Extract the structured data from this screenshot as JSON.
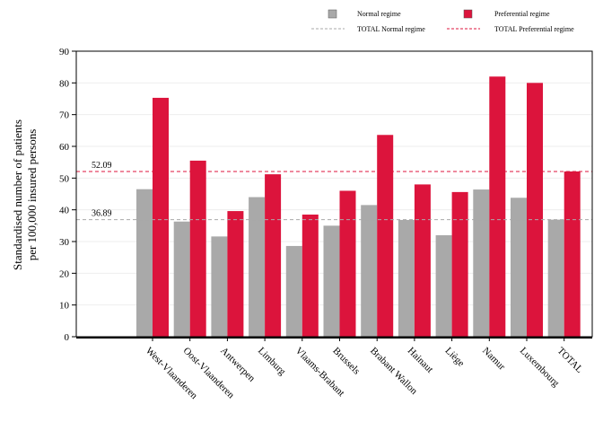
{
  "chart_data": {
    "type": "bar",
    "ylabel_lines": [
      "Standardised number of patients",
      "per 100,000 insured persons"
    ],
    "categories": [
      "West-Vlaanderen",
      "Oost-Vlaanderen",
      "Antwerpen",
      "Limburg",
      "Vlaams-Brabant",
      "Brussels",
      "Brabant Wallon",
      "Hainaut",
      "Liège",
      "Namur",
      "Luxembourg",
      "TOTAL"
    ],
    "series": [
      {
        "name": "Normal regime",
        "color": "#a9a9a9",
        "values": [
          46.5,
          36.3,
          31.6,
          44.0,
          28.6,
          35.0,
          41.5,
          36.8,
          32.0,
          46.4,
          43.8,
          36.9
        ]
      },
      {
        "name": "Preferential regime",
        "color": "#dc143c",
        "values": [
          75.3,
          55.5,
          39.6,
          51.2,
          38.5,
          46.0,
          63.6,
          48.0,
          45.6,
          82.0,
          80.0,
          52.1
        ]
      }
    ],
    "reference_lines": [
      {
        "name": "TOTAL Normal regime",
        "value": 36.89,
        "label": "36.89",
        "color": "#a9a9a9"
      },
      {
        "name": "TOTAL Preferential regime",
        "value": 52.09,
        "label": "52.09",
        "color": "#dc143c"
      }
    ],
    "ylim": [
      0,
      90
    ],
    "yticks": [
      "0",
      "10",
      "20",
      "30",
      "40",
      "50",
      "60",
      "70",
      "80",
      "90"
    ],
    "grid": true,
    "legend_position": "top-right"
  }
}
